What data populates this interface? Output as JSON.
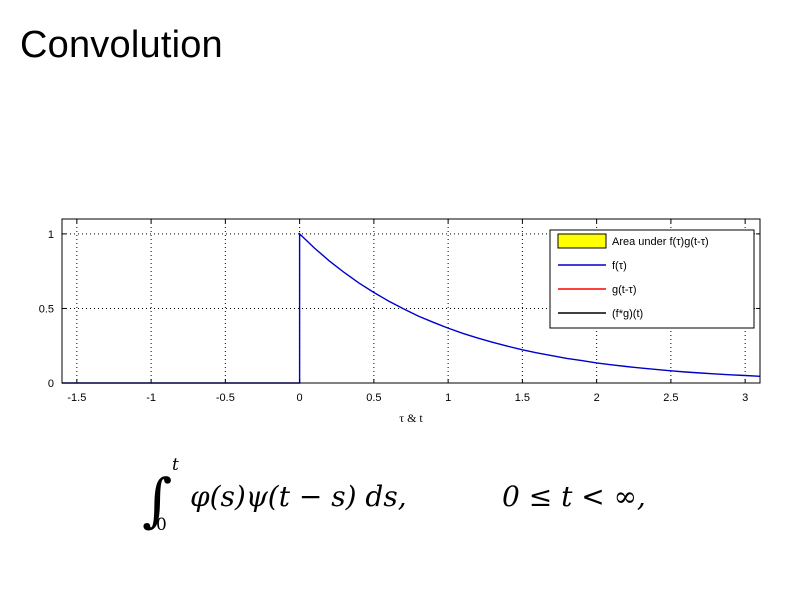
{
  "slide": {
    "title": "Convolution"
  },
  "chart_data": {
    "type": "line",
    "title": "",
    "xlabel": "τ & t",
    "ylabel": "",
    "xlim": [
      -1.6,
      3.1
    ],
    "ylim": [
      0,
      1.1
    ],
    "x_ticks": [
      -1.5,
      -1,
      -0.5,
      0,
      0.5,
      1,
      1.5,
      2,
      2.5,
      3
    ],
    "x_tick_labels": [
      "-1.5",
      "-1",
      "-0.5",
      "0",
      "0.5",
      "1",
      "1.5",
      "2",
      "2.5",
      "3"
    ],
    "y_ticks": [
      0,
      0.5,
      1
    ],
    "y_tick_labels": [
      "0",
      "0.5",
      "1"
    ],
    "grid": true,
    "legend_position": "top-right",
    "legend": [
      {
        "label": "Area under f(τ)g(t-τ)",
        "kind": "patch",
        "color": "#ffff00"
      },
      {
        "label": "f(τ)",
        "kind": "line",
        "color": "#0000cc"
      },
      {
        "label": "g(t-τ)",
        "kind": "line",
        "color": "#ff0000"
      },
      {
        "label": "(f*g)(t)",
        "kind": "line",
        "color": "#000000"
      }
    ],
    "series": [
      {
        "name": "f(τ)",
        "color": "#0000cc",
        "x": [
          -1.6,
          -1.0,
          -0.5,
          0,
          0,
          0.1,
          0.2,
          0.3,
          0.4,
          0.5,
          0.6,
          0.7,
          0.8,
          0.9,
          1.0,
          1.1,
          1.2,
          1.3,
          1.4,
          1.5,
          1.6,
          1.7,
          1.8,
          1.9,
          2.0,
          2.1,
          2.2,
          2.3,
          2.4,
          2.5,
          2.6,
          2.7,
          2.8,
          2.9,
          3.0,
          3.1
        ],
        "y": [
          0,
          0,
          0,
          0,
          1.0,
          0.905,
          0.819,
          0.741,
          0.67,
          0.607,
          0.549,
          0.497,
          0.449,
          0.407,
          0.368,
          0.333,
          0.301,
          0.273,
          0.247,
          0.223,
          0.202,
          0.183,
          0.165,
          0.15,
          0.135,
          0.122,
          0.111,
          0.1,
          0.091,
          0.082,
          0.074,
          0.067,
          0.061,
          0.055,
          0.05,
          0.045
        ]
      }
    ]
  },
  "formula": {
    "integral_upper": "t",
    "integral_lower": "0",
    "integrand": "φ(s)ψ(t − s) ds,",
    "condition": "0 ≤ t < ∞,"
  }
}
